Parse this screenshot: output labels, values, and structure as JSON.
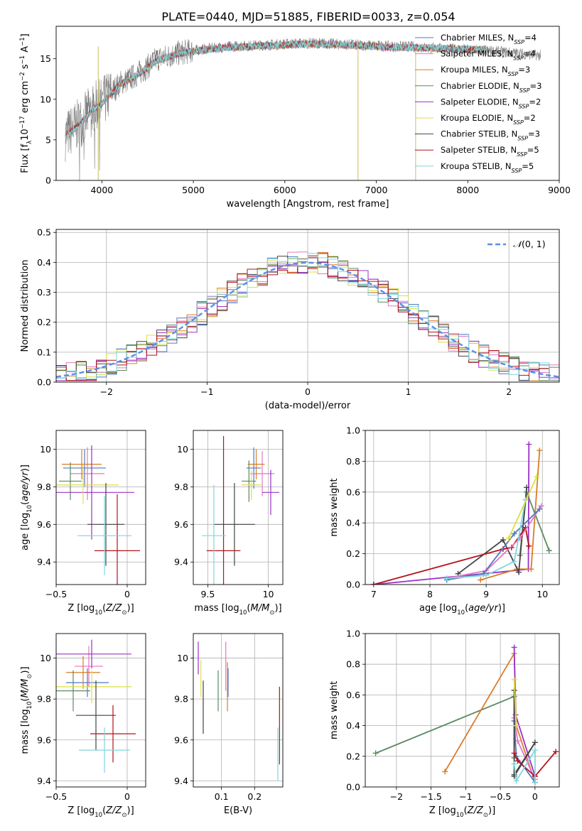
{
  "figure_title": "PLATE=0440, MJD=51885, FIBERID=0033, z=0.054",
  "chart_data": [
    {
      "id": "spectrum",
      "type": "line",
      "xlabel": "wavelength [Angstrom, rest frame]",
      "ylabel": "Flux [fλ10⁻¹⁷ erg cm⁻² s⁻¹ A⁻¹]",
      "xlim": [
        3500,
        9000
      ],
      "ylim": [
        0,
        19
      ],
      "xticks": [
        4000,
        5000,
        6000,
        7000,
        8000,
        9000
      ],
      "yticks": [
        0,
        5,
        10,
        15
      ],
      "observed_color": "#7f7f7f",
      "observed": {
        "x": [
          3600,
          3700,
          3800,
          3900,
          4000,
          4100,
          4200,
          4300,
          4400,
          4500,
          4600,
          4700,
          4800,
          4900,
          5000,
          5200,
          5400,
          5600,
          5800,
          6000,
          6200,
          6400,
          6600,
          6800,
          7000,
          7200,
          7400,
          7600,
          7800,
          8000,
          8200,
          8400,
          8600,
          8800
        ],
        "y": [
          5.5,
          6.5,
          7.5,
          9.0,
          9.5,
          10.8,
          12.0,
          12.5,
          13.2,
          14.0,
          15.0,
          15.2,
          15.6,
          15.8,
          16.0,
          16.3,
          16.5,
          16.6,
          16.7,
          16.8,
          16.9,
          16.9,
          16.8,
          16.7,
          16.6,
          16.5,
          16.5,
          16.3,
          16.2,
          16.1,
          16.0,
          15.8,
          15.6,
          15.4
        ]
      },
      "model": {
        "x": [
          3600,
          3700,
          3800,
          3900,
          4000,
          4100,
          4200,
          4300,
          4400,
          4500,
          4600,
          4700,
          4800,
          4900,
          5000,
          5200,
          5400,
          5600,
          5800,
          6000,
          6200,
          6400,
          6600,
          6800,
          7000,
          7200,
          7400
        ],
        "y": [
          5.5,
          6.4,
          7.4,
          8.8,
          9.4,
          10.7,
          11.9,
          12.4,
          13.1,
          13.9,
          14.8,
          15.1,
          15.5,
          15.7,
          15.9,
          16.2,
          16.4,
          16.5,
          16.6,
          16.7,
          16.8,
          16.8,
          16.7,
          16.6,
          16.5,
          16.4,
          16.4
        ]
      },
      "dips": [
        3960,
        6800,
        7430
      ],
      "legend_entries": [
        {
          "name": "Chabrier MILES, N",
          "sub": "SSP",
          "n": "=4",
          "color": "#4f78c4"
        },
        {
          "name": "Salpeter MILES, N",
          "sub": "SSP",
          "n": "=4",
          "color": "#e377c2"
        },
        {
          "name": "Kroupa MILES, N",
          "sub": "SSP",
          "n": "=3",
          "color": "#d97c28"
        },
        {
          "name": "Chabrier ELODIE, N",
          "sub": "SSP",
          "n": "=3",
          "color": "#5a8a5f"
        },
        {
          "name": "Salpeter ELODIE, N",
          "sub": "SSP",
          "n": "=2",
          "color": "#9b30c8"
        },
        {
          "name": "Kroupa ELODIE, N",
          "sub": "SSP",
          "n": "=2",
          "color": "#dede45"
        },
        {
          "name": "Chabrier STELIB, N",
          "sub": "SSP",
          "n": "=3",
          "color": "#444444"
        },
        {
          "name": "Salpeter STELIB, N",
          "sub": "SSP",
          "n": "=5",
          "color": "#b5121b"
        },
        {
          "name": "Kroupa STELIB, N",
          "sub": "SSP",
          "n": "=5",
          "color": "#7fd6dc"
        }
      ]
    },
    {
      "id": "residuals",
      "type": "line",
      "xlabel": "(data-model)/error",
      "ylabel": "Normed distribution",
      "xlim": [
        -2.5,
        2.5
      ],
      "ylim": [
        0,
        0.51
      ],
      "xticks": [
        -2,
        -1,
        0,
        1,
        2
      ],
      "yticks": [
        0.0,
        0.1,
        0.2,
        0.3,
        0.4,
        0.5
      ],
      "legend": {
        "label": "𝒩(0,1)",
        "color": "#5b8ee6",
        "placement": "top-right"
      },
      "histogram_bin_width": 0.1,
      "series_colors": [
        "#4f78c4",
        "#e377c2",
        "#d97c28",
        "#5a8a5f",
        "#9b30c8",
        "#dede45",
        "#444444",
        "#b5121b",
        "#7fd6dc"
      ]
    },
    {
      "id": "z-age",
      "type": "scatter",
      "xlabel": "Z [log₁₀(Z/Z⊙)]",
      "ylabel": "age  [log₁₀(age/yr)]",
      "xlim": [
        -0.5,
        0.13
      ],
      "ylim": [
        9.28,
        10.1
      ],
      "xticks": [
        -0.5,
        0.0
      ],
      "yticks": [
        9.4,
        9.6,
        9.8,
        10.0
      ],
      "points": [
        {
          "x": -0.3,
          "y": 9.9,
          "xerr": 0.15,
          "yerr": 0.1,
          "color": "#4f78c4"
        },
        {
          "x": -0.28,
          "y": 9.87,
          "xerr": 0.12,
          "yerr": 0.14,
          "color": "#e377c2"
        },
        {
          "x": -0.32,
          "y": 9.92,
          "xerr": 0.14,
          "yerr": 0.08,
          "color": "#d97c28"
        },
        {
          "x": -0.4,
          "y": 9.83,
          "xerr": 0.08,
          "yerr": 0.1,
          "color": "#5a8a5f"
        },
        {
          "x": -0.25,
          "y": 9.77,
          "xerr": 0.3,
          "yerr": 0.25,
          "color": "#9b30c8"
        },
        {
          "x": -0.31,
          "y": 9.81,
          "xerr": 0.25,
          "yerr": 0.1,
          "color": "#dede45"
        },
        {
          "x": -0.15,
          "y": 9.6,
          "xerr": 0.13,
          "yerr": 0.22,
          "color": "#444444"
        },
        {
          "x": -0.07,
          "y": 9.46,
          "xerr": 0.16,
          "yerr": 0.3,
          "color": "#b5121b"
        },
        {
          "x": -0.16,
          "y": 9.54,
          "xerr": 0.19,
          "yerr": 0.21,
          "color": "#7fd6dc"
        }
      ]
    },
    {
      "id": "mass-age",
      "type": "scatter",
      "xlabel": "mass [log₁₀(M/M⊙)]",
      "ylabel": "",
      "xlim": [
        9.38,
        10.12
      ],
      "ylim": [
        9.28,
        10.1
      ],
      "xticks": [
        9.5,
        10.0
      ],
      "yticks": [
        9.4,
        9.6,
        9.8,
        10.0
      ],
      "points": [
        {
          "x": 9.88,
          "y": 9.9,
          "xerr": 0.06,
          "yerr": 0.11,
          "color": "#4f78c4"
        },
        {
          "x": 9.95,
          "y": 9.87,
          "xerr": 0.1,
          "yerr": 0.12,
          "color": "#e377c2"
        },
        {
          "x": 9.9,
          "y": 9.92,
          "xerr": 0.07,
          "yerr": 0.08,
          "color": "#d97c28"
        },
        {
          "x": 9.84,
          "y": 9.83,
          "xerr": 0.06,
          "yerr": 0.11,
          "color": "#5a8a5f"
        },
        {
          "x": 10.02,
          "y": 9.77,
          "xerr": 0.07,
          "yerr": 0.12,
          "color": "#9b30c8"
        },
        {
          "x": 9.86,
          "y": 9.81,
          "xerr": 0.08,
          "yerr": 0.08,
          "color": "#dede45"
        },
        {
          "x": 9.72,
          "y": 9.6,
          "xerr": 0.17,
          "yerr": 0.22,
          "color": "#444444"
        },
        {
          "x": 9.63,
          "y": 9.46,
          "xerr": 0.14,
          "yerr": 0.61,
          "color": "#b5121b"
        },
        {
          "x": 9.55,
          "y": 9.54,
          "xerr": 0.1,
          "yerr": 0.27,
          "color": "#7fd6dc"
        }
      ]
    },
    {
      "id": "age-weight",
      "type": "line",
      "xlabel": "age  [log₁₀(age/yr)]",
      "ylabel": "mass weight",
      "xlim": [
        6.85,
        10.3
      ],
      "ylim": [
        0,
        1.0
      ],
      "xticks": [
        7,
        8,
        9,
        10
      ],
      "yticks": [
        0.0,
        0.2,
        0.4,
        0.6,
        0.8,
        1.0
      ],
      "series": [
        {
          "color": "#9b30c8",
          "x": [
            7.0,
            8.95,
            9.75,
            9.76
          ],
          "y": [
            0.0,
            0.07,
            0.1,
            0.91
          ]
        },
        {
          "color": "#d97c28",
          "x": [
            8.9,
            9.55,
            9.8,
            9.95
          ],
          "y": [
            0.03,
            0.1,
            0.1,
            0.87
          ]
        },
        {
          "color": "#5a8a5f",
          "x": [
            9.6,
            9.72,
            10.12
          ],
          "y": [
            0.19,
            0.6,
            0.22
          ]
        },
        {
          "color": "#444444",
          "x": [
            8.5,
            9.3,
            9.58,
            9.72
          ],
          "y": [
            0.07,
            0.29,
            0.08,
            0.63
          ]
        },
        {
          "color": "#b5121b",
          "x": [
            7.0,
            9.3,
            9.45,
            9.7,
            9.76
          ],
          "y": [
            0.0,
            0.23,
            0.24,
            0.37,
            0.25
          ]
        },
        {
          "color": "#e377c2",
          "x": [
            8.3,
            9.0,
            9.6,
            9.98
          ],
          "y": [
            0.04,
            0.09,
            0.3,
            0.51
          ]
        },
        {
          "color": "#4f78c4",
          "x": [
            8.3,
            8.95,
            9.5,
            9.95
          ],
          "y": [
            0.03,
            0.07,
            0.33,
            0.49
          ]
        },
        {
          "color": "#7fd6dc",
          "x": [
            8.3,
            9.0,
            9.5,
            9.7
          ],
          "y": [
            0.04,
            0.06,
            0.15,
            0.55
          ]
        },
        {
          "color": "#dede45",
          "x": [
            9.4,
            9.9
          ],
          "y": [
            0.3,
            0.7
          ]
        }
      ]
    },
    {
      "id": "z-mass",
      "type": "scatter",
      "xlabel": "Z [log₁₀(Z/Z⊙)]",
      "ylabel": "mass [log₁₀(M/M⊙)]",
      "xlim": [
        -0.5,
        0.13
      ],
      "ylim": [
        9.37,
        10.12
      ],
      "xticks": [
        -0.5,
        0.0
      ],
      "yticks": [
        9.4,
        9.6,
        9.8,
        10.0
      ],
      "points": [
        {
          "x": -0.28,
          "y": 9.88,
          "xerr": 0.15,
          "yerr": 0.07,
          "color": "#4f78c4"
        },
        {
          "x": -0.27,
          "y": 9.96,
          "xerr": 0.1,
          "yerr": 0.1,
          "color": "#e377c2"
        },
        {
          "x": -0.31,
          "y": 9.93,
          "xerr": 0.12,
          "yerr": 0.08,
          "color": "#d97c28"
        },
        {
          "x": -0.38,
          "y": 9.84,
          "xerr": 0.12,
          "yerr": 0.1,
          "color": "#5a8a5f"
        },
        {
          "x": -0.25,
          "y": 10.02,
          "xerr": 0.28,
          "yerr": 0.07,
          "color": "#9b30c8"
        },
        {
          "x": -0.25,
          "y": 9.86,
          "xerr": 0.28,
          "yerr": 0.08,
          "color": "#dede45"
        },
        {
          "x": -0.22,
          "y": 9.72,
          "xerr": 0.14,
          "yerr": 0.17,
          "color": "#444444"
        },
        {
          "x": -0.1,
          "y": 9.63,
          "xerr": 0.16,
          "yerr": 0.14,
          "color": "#b5121b"
        },
        {
          "x": -0.16,
          "y": 9.55,
          "xerr": 0.18,
          "yerr": 0.11,
          "color": "#7fd6dc"
        }
      ]
    },
    {
      "id": "ebv-mass",
      "type": "scatter",
      "xlabel": "E(B-V)",
      "ylabel": "",
      "xlim": [
        0.015,
        0.285
      ],
      "ylim": [
        9.37,
        10.12
      ],
      "xticks": [
        0.1,
        0.2
      ],
      "yticks": [
        9.4,
        9.6,
        9.8,
        10.0
      ],
      "points": [
        {
          "x": 0.12,
          "y": 9.88,
          "xerr": 0.0,
          "yerr": 0.07,
          "color": "#4f78c4"
        },
        {
          "x": 0.113,
          "y": 9.96,
          "xerr": 0.0,
          "yerr": 0.12,
          "color": "#e377c2"
        },
        {
          "x": 0.118,
          "y": 9.86,
          "xerr": 0.0,
          "yerr": 0.12,
          "color": "#d97c28"
        },
        {
          "x": 0.09,
          "y": 9.84,
          "xerr": 0.0,
          "yerr": 0.1,
          "color": "#5a8a5f"
        },
        {
          "x": 0.03,
          "y": 10.0,
          "xerr": 0.0,
          "yerr": 0.08,
          "color": "#9b30c8"
        },
        {
          "x": 0.038,
          "y": 9.9,
          "xerr": 0.0,
          "yerr": 0.09,
          "color": "#dede45"
        },
        {
          "x": 0.045,
          "y": 9.76,
          "xerr": 0.0,
          "yerr": 0.13,
          "color": "#444444"
        },
        {
          "x": 0.275,
          "y": 9.67,
          "xerr": 0.0,
          "yerr": 0.19,
          "color": "#b5121b"
        },
        {
          "x": 0.27,
          "y": 9.53,
          "xerr": 0.0,
          "yerr": 0.13,
          "color": "#7fd6dc"
        }
      ]
    },
    {
      "id": "z-weight",
      "type": "line",
      "xlabel": "Z [log₁₀(Z/Z⊙)]",
      "ylabel": "mass weight",
      "xlim": [
        -2.45,
        0.35
      ],
      "ylim": [
        0,
        1.0
      ],
      "xticks": [
        -2.0,
        -1.5,
        -1.0,
        -0.5,
        0.0
      ],
      "yticks": [
        0.0,
        0.2,
        0.4,
        0.6,
        0.8,
        1.0
      ],
      "series": [
        {
          "color": "#5a8a5f",
          "x": [
            -2.3,
            -0.3,
            -0.3
          ],
          "y": [
            0.22,
            0.59,
            0.19
          ]
        },
        {
          "color": "#d97c28",
          "x": [
            -1.3,
            -0.3,
            -0.27,
            0.0
          ],
          "y": [
            0.1,
            0.87,
            0.4,
            0.03
          ]
        },
        {
          "color": "#9b30c8",
          "x": [
            -0.3,
            -0.28,
            0.0
          ],
          "y": [
            0.91,
            0.47,
            0.07
          ]
        },
        {
          "color": "#e377c2",
          "x": [
            -0.3,
            -0.25,
            0.0
          ],
          "y": [
            0.45,
            0.3,
            0.05
          ]
        },
        {
          "color": "#4f78c4",
          "x": [
            -0.3,
            -0.27,
            0.0
          ],
          "y": [
            0.43,
            0.2,
            0.03
          ]
        },
        {
          "color": "#444444",
          "x": [
            -0.3,
            -0.3,
            0.0,
            -0.3
          ],
          "y": [
            0.63,
            0.08,
            0.29,
            0.07
          ]
        },
        {
          "color": "#b5121b",
          "x": [
            -0.3,
            -0.25,
            0.0,
            0.3
          ],
          "y": [
            0.22,
            0.17,
            0.07,
            0.23
          ]
        },
        {
          "color": "#7fd6dc",
          "x": [
            -0.3,
            -0.27,
            0.0,
            0.0
          ],
          "y": [
            0.15,
            0.04,
            0.24,
            0.03
          ]
        },
        {
          "color": "#dede45",
          "x": [
            -0.3,
            -0.27
          ],
          "y": [
            0.7,
            0.4
          ]
        }
      ]
    }
  ]
}
